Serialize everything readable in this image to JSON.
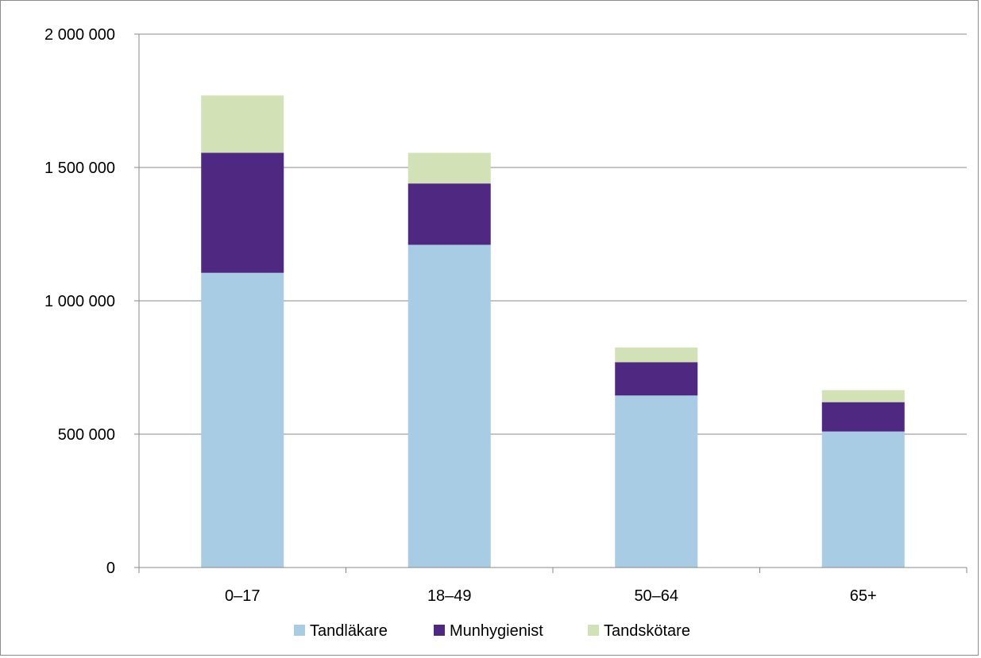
{
  "chart_data": {
    "type": "bar",
    "stacked": true,
    "categories": [
      "0–17",
      "18–49",
      "50–64",
      "65+"
    ],
    "series": [
      {
        "name": "Tandläkare",
        "color": "#a8cce4",
        "values": [
          1105000,
          1210000,
          645000,
          510000
        ]
      },
      {
        "name": "Munhygienist",
        "color": "#4f2882",
        "values": [
          450000,
          230000,
          125000,
          110000
        ]
      },
      {
        "name": "Tandskötare",
        "color": "#d3e2b6",
        "values": [
          215000,
          115000,
          55000,
          45000
        ]
      }
    ],
    "ylim": [
      0,
      2000000
    ],
    "yticks": [
      0,
      500000,
      1000000,
      1500000,
      2000000
    ],
    "ytick_labels": [
      "0",
      "500 000",
      "1 000 000",
      "1 500 000",
      "2 000 000"
    ],
    "grid": true,
    "legend_position": "bottom"
  }
}
